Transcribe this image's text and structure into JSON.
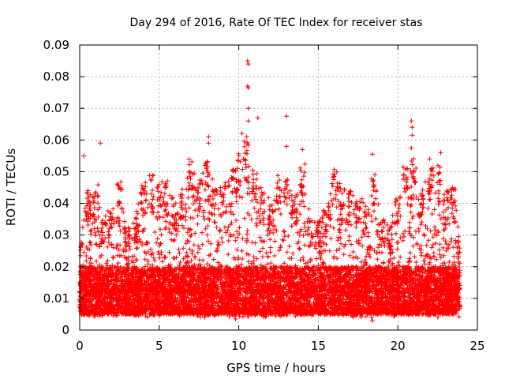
{
  "chart_data": {
    "type": "scatter",
    "title": "Day 294 of 2016, Rate Of TEC Index for receiver stas",
    "xlabel": "GPS time / hours",
    "ylabel": "ROTI / TECUs",
    "xlim": [
      0,
      25
    ],
    "ylim": [
      0,
      0.09
    ],
    "x_ticks": [
      0,
      5,
      10,
      15,
      20,
      25
    ],
    "x_tick_labels": [
      "0",
      "5",
      "10",
      "15",
      "20",
      "25"
    ],
    "y_ticks": [
      0,
      0.01,
      0.02,
      0.03,
      0.04,
      0.05,
      0.06,
      0.07,
      0.08,
      0.09
    ],
    "y_tick_labels": [
      "0",
      "0.01",
      "0.02",
      "0.03",
      "0.04",
      "0.05",
      "0.06",
      "0.07",
      "0.08",
      "0.09"
    ],
    "grid": true,
    "marker": "+",
    "color": "#ff0000",
    "series": [
      {
        "name": "stas",
        "time_range_hours": [
          0,
          23.9
        ],
        "bulk_range": [
          0.005,
          0.02
        ],
        "notable_points": [
          {
            "x": 0.25,
            "y": 0.055
          },
          {
            "x": 1.3,
            "y": 0.059
          },
          {
            "x": 8.1,
            "y": 0.061
          },
          {
            "x": 8.1,
            "y": 0.059
          },
          {
            "x": 10.2,
            "y": 0.062
          },
          {
            "x": 10.5,
            "y": 0.061
          },
          {
            "x": 10.55,
            "y": 0.085
          },
          {
            "x": 10.6,
            "y": 0.084
          },
          {
            "x": 10.55,
            "y": 0.077
          },
          {
            "x": 10.6,
            "y": 0.0765
          },
          {
            "x": 10.6,
            "y": 0.07
          },
          {
            "x": 10.6,
            "y": 0.066
          },
          {
            "x": 11.2,
            "y": 0.067
          },
          {
            "x": 13.0,
            "y": 0.0675
          },
          {
            "x": 13.0,
            "y": 0.058
          },
          {
            "x": 14.0,
            "y": 0.057
          },
          {
            "x": 18.4,
            "y": 0.0555
          },
          {
            "x": 20.85,
            "y": 0.066
          },
          {
            "x": 20.9,
            "y": 0.064
          },
          {
            "x": 20.9,
            "y": 0.0615
          },
          {
            "x": 20.85,
            "y": 0.0575
          },
          {
            "x": 22.7,
            "y": 0.056
          },
          {
            "x": 22.0,
            "y": 0.054
          },
          {
            "x": 18.4,
            "y": 0.003
          },
          {
            "x": 9.8,
            "y": 0.0035
          }
        ],
        "envelope": [
          [
            0.0,
            0.03
          ],
          [
            0.5,
            0.045
          ],
          [
            1.0,
            0.046
          ],
          [
            1.5,
            0.035
          ],
          [
            2.0,
            0.04
          ],
          [
            2.5,
            0.047
          ],
          [
            3.0,
            0.033
          ],
          [
            3.5,
            0.036
          ],
          [
            4.0,
            0.048
          ],
          [
            4.5,
            0.049
          ],
          [
            5.0,
            0.047
          ],
          [
            5.5,
            0.048
          ],
          [
            6.0,
            0.04
          ],
          [
            6.5,
            0.046
          ],
          [
            7.0,
            0.055
          ],
          [
            7.5,
            0.048
          ],
          [
            8.0,
            0.054
          ],
          [
            8.5,
            0.045
          ],
          [
            9.0,
            0.047
          ],
          [
            9.5,
            0.052
          ],
          [
            10.0,
            0.058
          ],
          [
            10.5,
            0.06
          ],
          [
            11.0,
            0.053
          ],
          [
            11.5,
            0.045
          ],
          [
            12.0,
            0.041
          ],
          [
            12.5,
            0.05
          ],
          [
            13.0,
            0.049
          ],
          [
            13.5,
            0.043
          ],
          [
            14.0,
            0.053
          ],
          [
            14.5,
            0.035
          ],
          [
            15.0,
            0.035
          ],
          [
            15.5,
            0.038
          ],
          [
            16.0,
            0.051
          ],
          [
            16.5,
            0.045
          ],
          [
            17.0,
            0.044
          ],
          [
            17.5,
            0.043
          ],
          [
            18.0,
            0.04
          ],
          [
            18.5,
            0.05
          ],
          [
            19.0,
            0.035
          ],
          [
            19.5,
            0.033
          ],
          [
            20.0,
            0.043
          ],
          [
            20.5,
            0.052
          ],
          [
            21.0,
            0.055
          ],
          [
            21.5,
            0.045
          ],
          [
            22.0,
            0.051
          ],
          [
            22.5,
            0.052
          ],
          [
            23.0,
            0.044
          ],
          [
            23.5,
            0.045
          ],
          [
            23.9,
            0.03
          ]
        ]
      }
    ]
  }
}
